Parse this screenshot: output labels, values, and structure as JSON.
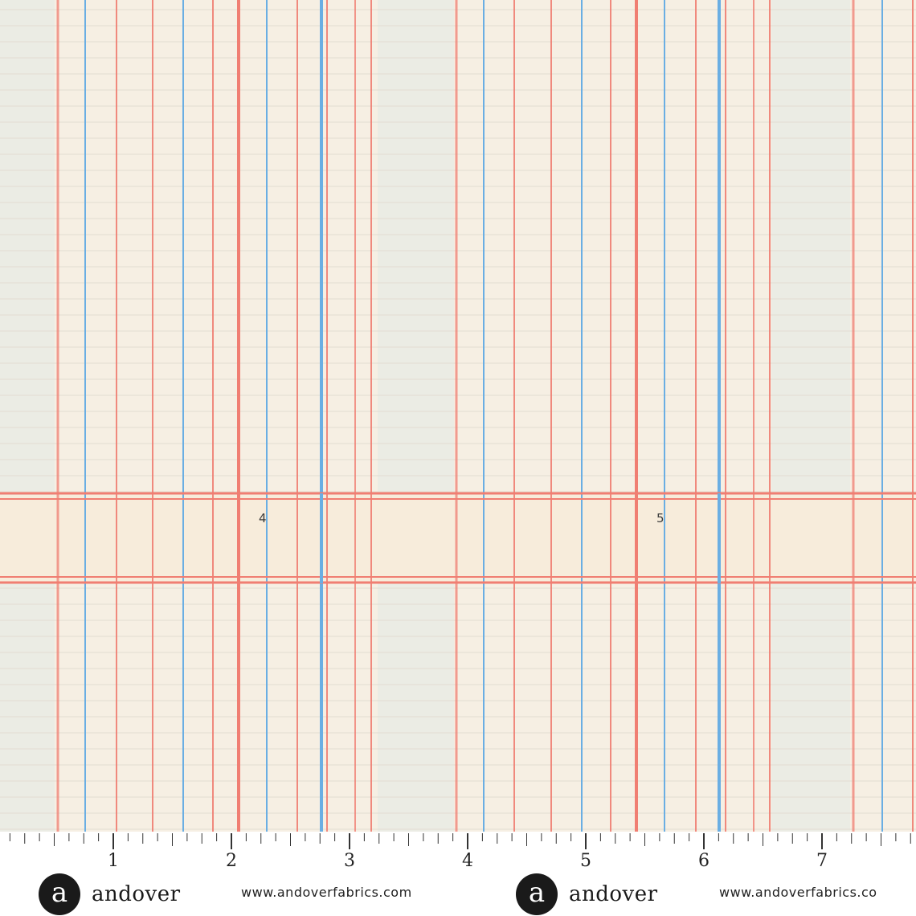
{
  "fabric": {
    "colors": {
      "background": "#f6efe3",
      "stripe_light": "#ebece4",
      "red_line": "#f07e72",
      "blue_line": "#6aaee3",
      "faint_rule": "#e3ddd2"
    },
    "band_labels": [
      "4",
      "5"
    ]
  },
  "ruler": {
    "unit_labels": [
      "1",
      "2",
      "3",
      "4",
      "5",
      "6",
      "7"
    ]
  },
  "watermarks": [
    {
      "logo_letter": "a",
      "brand": "andover",
      "url": "www.andoverfabrics.com"
    },
    {
      "logo_letter": "a",
      "brand": "andover",
      "url": "www.andoverfabrics.co"
    }
  ]
}
